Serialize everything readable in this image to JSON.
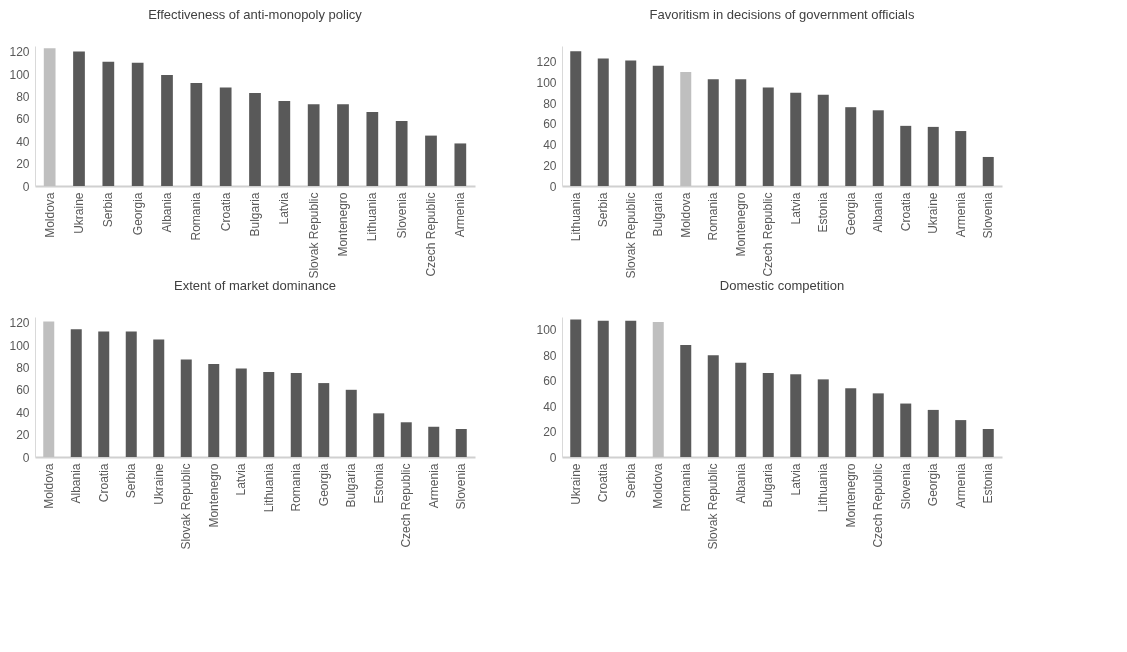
{
  "chart_data": [
    {
      "type": "bar",
      "title": "Effectiveness of anti-monopoly policy",
      "categories": [
        "Moldova",
        "Ukraine",
        "Serbia",
        "Georgia",
        "Albania",
        "Romania",
        "Croatia",
        "Bulgaria",
        "Latvia",
        "Slovak Republic",
        "Montenegro",
        "Lithuania",
        "Slovenia",
        "Czech Republic",
        "Armenia"
      ],
      "values": [
        123,
        120,
        111,
        110,
        99,
        92,
        88,
        83,
        76,
        73,
        73,
        66,
        58,
        45,
        38
      ],
      "colors": [
        "#bfbfbf",
        "#595959",
        "#595959",
        "#595959",
        "#595959",
        "#595959",
        "#595959",
        "#595959",
        "#595959",
        "#595959",
        "#595959",
        "#595959",
        "#595959",
        "#595959",
        "#595959"
      ],
      "ylim": [
        0,
        125
      ],
      "yticks": [
        0,
        20,
        40,
        60,
        80,
        100,
        120
      ],
      "grid": false
    },
    {
      "type": "bar",
      "title": "Favoritism in decisions of government officials",
      "categories": [
        "Lithuania",
        "Serbia",
        "Slovak Republic",
        "Bulgaria",
        "Moldova",
        "Romania",
        "Montenegro",
        "Czech Republic",
        "Latvia",
        "Estonia",
        "Georgia",
        "Albania",
        "Croatia",
        "Ukraine",
        "Armenia",
        "Slovenia"
      ],
      "values": [
        130,
        123,
        121,
        116,
        110,
        103,
        103,
        95,
        90,
        88,
        76,
        73,
        58,
        57,
        53,
        28
      ],
      "colors": [
        "#595959",
        "#595959",
        "#595959",
        "#595959",
        "#bfbfbf",
        "#595959",
        "#595959",
        "#595959",
        "#595959",
        "#595959",
        "#595959",
        "#595959",
        "#595959",
        "#595959",
        "#595959",
        "#595959"
      ],
      "ylim": [
        0,
        135
      ],
      "yticks": [
        0,
        20,
        40,
        60,
        80,
        100,
        120
      ],
      "grid": false
    },
    {
      "type": "bar",
      "title": "Extent of market dominance",
      "categories": [
        "Moldova",
        "Albania",
        "Croatia",
        "Serbia",
        "Ukraine",
        "Slovak Republic",
        "Montenegro",
        "Latvia",
        "Lithuania",
        "Romania",
        "Georgia",
        "Bulgaria",
        "Estonia",
        "Czech Republic",
        "Armenia",
        "Slovenia"
      ],
      "values": [
        121,
        114,
        112,
        112,
        105,
        87,
        83,
        79,
        76,
        75,
        66,
        60,
        39,
        31,
        27,
        25
      ],
      "colors": [
        "#bfbfbf",
        "#595959",
        "#595959",
        "#595959",
        "#595959",
        "#595959",
        "#595959",
        "#595959",
        "#595959",
        "#595959",
        "#595959",
        "#595959",
        "#595959",
        "#595959",
        "#595959",
        "#595959"
      ],
      "ylim": [
        0,
        125
      ],
      "yticks": [
        0,
        20,
        40,
        60,
        80,
        100,
        120
      ],
      "grid": false
    },
    {
      "type": "bar",
      "title": "Domestic competition",
      "categories": [
        "Ukraine",
        "Croatia",
        "Serbia",
        "Moldova",
        "Romania",
        "Slovak Republic",
        "Albania",
        "Bulgaria",
        "Latvia",
        "Lithuania",
        "Montenegro",
        "Czech Republic",
        "Slovenia",
        "Georgia",
        "Armenia",
        "Estonia"
      ],
      "values": [
        108,
        107,
        107,
        106,
        88,
        80,
        74,
        66,
        65,
        61,
        54,
        50,
        42,
        37,
        29,
        22
      ],
      "colors": [
        "#595959",
        "#595959",
        "#595959",
        "#bfbfbf",
        "#595959",
        "#595959",
        "#595959",
        "#595959",
        "#595959",
        "#595959",
        "#595959",
        "#595959",
        "#595959",
        "#595959",
        "#595959",
        "#595959"
      ],
      "ylim": [
        0,
        110
      ],
      "yticks": [
        0,
        20,
        40,
        60,
        80,
        100
      ],
      "grid": false
    }
  ]
}
